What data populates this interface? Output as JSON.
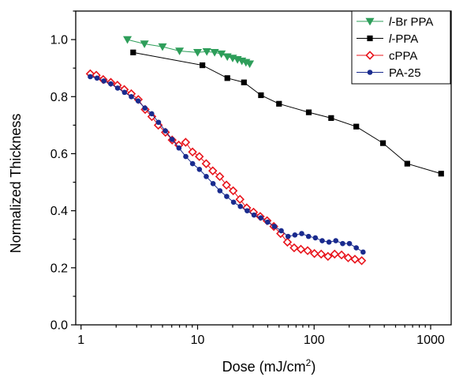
{
  "chart_data": {
    "type": "line",
    "xscale": "log",
    "xlim": [
      0.9,
      1500
    ],
    "ylim": [
      0.0,
      1.1
    ],
    "xticks": [
      1,
      10,
      100,
      1000
    ],
    "xtick_labels": [
      "1",
      "10",
      "100",
      "1000"
    ],
    "yticks": [
      0.0,
      0.2,
      0.4,
      0.6,
      0.8,
      1.0
    ],
    "ytick_labels": [
      "0.0",
      "0.2",
      "0.4",
      "0.6",
      "0.8",
      "1.0"
    ],
    "xlabel": {
      "pre": "Dose (mJ/cm",
      "sup": "2",
      "post": ")"
    },
    "ylabel": "Normalized Thickness",
    "grid": false,
    "legend_position": "top-right",
    "series": [
      {
        "name": {
          "italic": "l",
          "rest": "-Br PPA"
        },
        "color": "#2e9e5a",
        "marker": "triangle-down",
        "x": [
          2.5,
          3.5,
          5,
          7,
          10,
          12,
          14,
          16,
          18,
          20,
          22,
          24,
          26,
          28
        ],
        "y": [
          1.0,
          0.985,
          0.975,
          0.96,
          0.955,
          0.958,
          0.955,
          0.95,
          0.94,
          0.935,
          0.93,
          0.925,
          0.92,
          0.915
        ]
      },
      {
        "name": {
          "italic": "l",
          "rest": "-PPA"
        },
        "color": "#000000",
        "marker": "square",
        "x": [
          2.8,
          11,
          18,
          25,
          35,
          50,
          90,
          140,
          230,
          390,
          630,
          1230
        ],
        "y": [
          0.955,
          0.91,
          0.865,
          0.85,
          0.805,
          0.775,
          0.745,
          0.725,
          0.695,
          0.637,
          0.565,
          0.53
        ]
      },
      {
        "name": {
          "italic": "",
          "rest": "cPPA"
        },
        "color": "#e8141c",
        "marker": "diamond-open",
        "x": [
          1.2,
          1.35,
          1.55,
          1.8,
          2.05,
          2.35,
          2.7,
          3.1,
          3.55,
          4.05,
          4.6,
          5.3,
          6.05,
          6.9,
          7.9,
          9.05,
          10.35,
          11.85,
          13.5,
          15.5,
          17.7,
          20.2,
          23.1,
          26.4,
          30.2,
          34.5,
          39.5,
          45.1,
          51.6,
          59,
          67.4,
          77,
          88,
          100.6,
          115,
          131.5,
          150,
          172,
          196,
          224,
          256
        ],
        "y": [
          0.88,
          0.875,
          0.86,
          0.85,
          0.84,
          0.825,
          0.81,
          0.79,
          0.755,
          0.73,
          0.7,
          0.675,
          0.648,
          0.63,
          0.64,
          0.606,
          0.59,
          0.565,
          0.54,
          0.52,
          0.49,
          0.47,
          0.44,
          0.41,
          0.395,
          0.38,
          0.365,
          0.345,
          0.32,
          0.29,
          0.27,
          0.265,
          0.26,
          0.25,
          0.248,
          0.24,
          0.248,
          0.245,
          0.235,
          0.23,
          0.225
        ]
      },
      {
        "name": {
          "italic": "",
          "rest": "PA-25"
        },
        "color": "#1a2b8e",
        "marker": "circle",
        "x": [
          1.2,
          1.37,
          1.57,
          1.8,
          2.06,
          2.36,
          2.7,
          3.09,
          3.53,
          4.04,
          4.62,
          5.29,
          6.05,
          6.92,
          7.92,
          9.06,
          10.37,
          11.87,
          13.58,
          15.54,
          17.78,
          20.35,
          23.28,
          26.64,
          30.48,
          34.88,
          39.91,
          45.66,
          52.25,
          59.79,
          68.4,
          78.27,
          89.57,
          102.5,
          117.3,
          134.2,
          153.5,
          175.7,
          201,
          230,
          263.2
        ],
        "y": [
          0.87,
          0.865,
          0.855,
          0.845,
          0.83,
          0.815,
          0.8,
          0.785,
          0.76,
          0.74,
          0.71,
          0.68,
          0.65,
          0.62,
          0.59,
          0.565,
          0.545,
          0.52,
          0.495,
          0.47,
          0.45,
          0.43,
          0.415,
          0.4,
          0.385,
          0.375,
          0.36,
          0.345,
          0.33,
          0.31,
          0.315,
          0.32,
          0.31,
          0.305,
          0.295,
          0.29,
          0.295,
          0.285,
          0.285,
          0.27,
          0.255
        ]
      }
    ]
  }
}
